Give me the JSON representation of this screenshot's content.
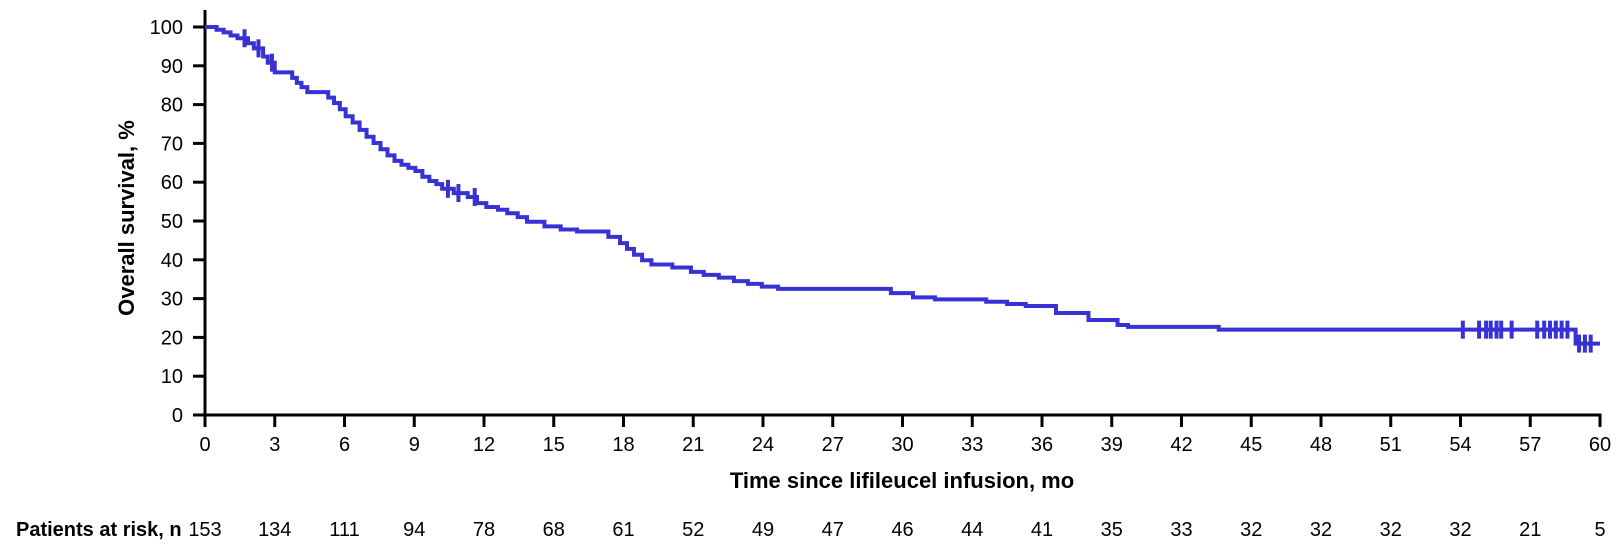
{
  "chart_data": {
    "type": "line",
    "subtype": "kaplan_meier_step",
    "title": "",
    "xlabel": "Time since lifileucel infusion, mo",
    "ylabel": "Overall survival, %",
    "xlim": [
      0,
      60
    ],
    "ylim": [
      0,
      100
    ],
    "x_ticks": [
      0,
      3,
      6,
      9,
      12,
      15,
      18,
      21,
      24,
      27,
      30,
      33,
      36,
      39,
      42,
      45,
      48,
      51,
      54,
      57,
      60
    ],
    "y_ticks": [
      0,
      10,
      20,
      30,
      40,
      50,
      60,
      70,
      80,
      90,
      100
    ],
    "grid": false,
    "legend_position": "none",
    "axis_color": "#000000",
    "series": [
      {
        "name": "Overall survival",
        "color": "#3831d4",
        "steps": [
          [
            0,
            100
          ],
          [
            0.5,
            99.3
          ],
          [
            0.8,
            98.6
          ],
          [
            1.1,
            97.8
          ],
          [
            1.4,
            97.1
          ],
          [
            1.85,
            95.8
          ],
          [
            2.1,
            94.5
          ],
          [
            2.5,
            92.4
          ],
          [
            2.7,
            90.8
          ],
          [
            3.0,
            88.3
          ],
          [
            3.75,
            86.9
          ],
          [
            3.95,
            85.6
          ],
          [
            4.15,
            84.5
          ],
          [
            4.4,
            83.2
          ],
          [
            5.3,
            81.8
          ],
          [
            5.55,
            80.4
          ],
          [
            5.8,
            78.8
          ],
          [
            6.05,
            77.0
          ],
          [
            6.35,
            75.4
          ],
          [
            6.65,
            73.5
          ],
          [
            6.95,
            71.7
          ],
          [
            7.25,
            70.1
          ],
          [
            7.55,
            68.5
          ],
          [
            7.85,
            66.9
          ],
          [
            8.15,
            65.5
          ],
          [
            8.45,
            64.5
          ],
          [
            8.75,
            63.7
          ],
          [
            9.05,
            62.9
          ],
          [
            9.35,
            61.4
          ],
          [
            9.65,
            60.3
          ],
          [
            9.95,
            59.5
          ],
          [
            10.2,
            58.3
          ],
          [
            10.7,
            57.2
          ],
          [
            11.3,
            56.2
          ],
          [
            11.7,
            54.6
          ],
          [
            12.1,
            53.6
          ],
          [
            12.6,
            52.9
          ],
          [
            13.0,
            52.0
          ],
          [
            13.45,
            51.0
          ],
          [
            13.85,
            49.8
          ],
          [
            14.6,
            48.6
          ],
          [
            15.3,
            47.8
          ],
          [
            16.0,
            47.3
          ],
          [
            17.35,
            45.9
          ],
          [
            17.85,
            44.3
          ],
          [
            18.15,
            42.8
          ],
          [
            18.45,
            41.3
          ],
          [
            18.8,
            39.9
          ],
          [
            19.2,
            38.8
          ],
          [
            20.1,
            38.0
          ],
          [
            20.9,
            36.9
          ],
          [
            21.45,
            36.1
          ],
          [
            22.1,
            35.4
          ],
          [
            22.75,
            34.5
          ],
          [
            23.35,
            33.8
          ],
          [
            23.95,
            33.1
          ],
          [
            24.65,
            32.5
          ],
          [
            29.5,
            31.4
          ],
          [
            30.45,
            30.3
          ],
          [
            31.4,
            29.8
          ],
          [
            33.6,
            29.2
          ],
          [
            34.5,
            28.6
          ],
          [
            35.3,
            28.1
          ],
          [
            36.6,
            26.3
          ],
          [
            38.0,
            24.5
          ],
          [
            39.25,
            23.2
          ],
          [
            39.7,
            22.7
          ],
          [
            43.6,
            22.0
          ],
          [
            58.95,
            18.4
          ],
          [
            60,
            18.4
          ]
        ],
        "censor_marks": [
          [
            1.7,
            97.1
          ],
          [
            2.3,
            94.5
          ],
          [
            2.88,
            90.8
          ],
          [
            10.45,
            58.3
          ],
          [
            10.9,
            57.2
          ],
          [
            11.6,
            56.2
          ],
          [
            54.1,
            22.0
          ],
          [
            54.8,
            22.0
          ],
          [
            55.1,
            22.0
          ],
          [
            55.3,
            22.0
          ],
          [
            55.55,
            22.0
          ],
          [
            55.75,
            22.0
          ],
          [
            56.2,
            22.0
          ],
          [
            57.3,
            22.0
          ],
          [
            57.6,
            22.0
          ],
          [
            57.85,
            22.0
          ],
          [
            58.1,
            22.0
          ],
          [
            58.35,
            22.0
          ],
          [
            58.6,
            22.0
          ],
          [
            59.1,
            18.4
          ],
          [
            59.35,
            18.4
          ],
          [
            59.6,
            18.4
          ]
        ]
      }
    ]
  },
  "at_risk": {
    "label": "Patients at risk, n",
    "counts": [
      153,
      134,
      111,
      94,
      78,
      68,
      61,
      52,
      49,
      47,
      46,
      44,
      41,
      35,
      33,
      32,
      32,
      32,
      32,
      21,
      5
    ]
  }
}
